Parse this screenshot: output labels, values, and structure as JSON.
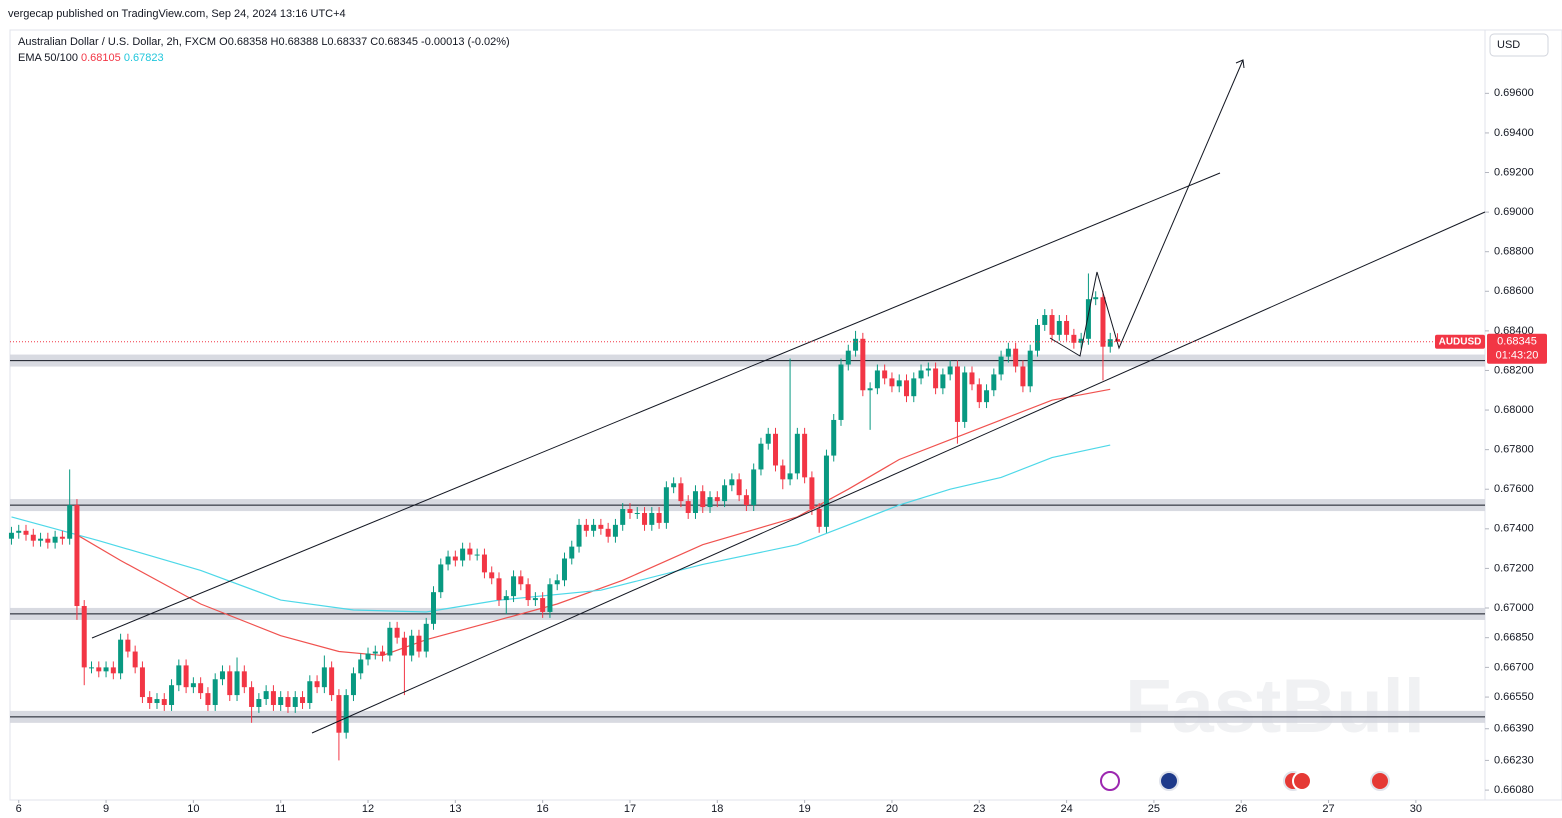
{
  "header": {
    "published": "vergecap published on TradingView.com, Sep 24, 2024 13:16 UTC+4",
    "currency": "USD",
    "watermark": "FastBull"
  },
  "legend": {
    "symbol": "Australian Dollar / U.S. Dollar, 2h, FXCM",
    "open": "O0.68358",
    "high": "H0.68388",
    "low": "L0.68337",
    "close": "C0.68345",
    "change": "-0.00013 (-0.02%)",
    "indicator": "EMA 50/100"
  },
  "price_tag": {
    "symbol": "AUDUSD",
    "countdown": "01:43:20"
  },
  "chart_data": {
    "type": "candlestick",
    "up_color": "#089981",
    "down_color": "#f23645",
    "xlim": [
      -1.2,
      201.5
    ],
    "ylim": [
      0.6603,
      0.6992
    ],
    "xticks": [
      {
        "value": 0,
        "label": "6"
      },
      {
        "value": 12,
        "label": "9"
      },
      {
        "value": 24,
        "label": "10"
      },
      {
        "value": 36,
        "label": "11"
      },
      {
        "value": 48,
        "label": "12"
      },
      {
        "value": 60,
        "label": "13"
      },
      {
        "value": 72,
        "label": "16"
      },
      {
        "value": 84,
        "label": "17"
      },
      {
        "value": 96,
        "label": "18"
      },
      {
        "value": 108,
        "label": "19"
      },
      {
        "value": 120,
        "label": "20"
      },
      {
        "value": 132,
        "label": "23"
      },
      {
        "value": 144,
        "label": "24"
      },
      {
        "value": 156,
        "label": "25"
      },
      {
        "value": 168,
        "label": "26"
      },
      {
        "value": 180,
        "label": "27"
      },
      {
        "value": 192,
        "label": "30"
      }
    ],
    "yticks": [
      {
        "value": 0.6608,
        "label": "0.66080"
      },
      {
        "value": 0.6623,
        "label": "0.66230"
      },
      {
        "value": 0.6639,
        "label": "0.66390"
      },
      {
        "value": 0.6655,
        "label": "0.66550"
      },
      {
        "value": 0.667,
        "label": "0.66700"
      },
      {
        "value": 0.6685,
        "label": "0.66850"
      },
      {
        "value": 0.67,
        "label": "0.67000"
      },
      {
        "value": 0.672,
        "label": "0.67200"
      },
      {
        "value": 0.674,
        "label": "0.67400"
      },
      {
        "value": 0.676,
        "label": "0.67600"
      },
      {
        "value": 0.678,
        "label": "0.67800"
      },
      {
        "value": 0.68,
        "label": "0.68000"
      },
      {
        "value": 0.682,
        "label": "0.68200"
      },
      {
        "value": 0.684,
        "label": "0.68400"
      },
      {
        "value": 0.686,
        "label": "0.68600"
      },
      {
        "value": 0.688,
        "label": "0.68800"
      },
      {
        "value": 0.69,
        "label": "0.69000"
      },
      {
        "value": 0.692,
        "label": "0.69200"
      },
      {
        "value": 0.694,
        "label": "0.69400"
      },
      {
        "value": 0.696,
        "label": "0.69600"
      }
    ],
    "x": [
      -1,
      0,
      1,
      2,
      3,
      4,
      5,
      6,
      7,
      8,
      9,
      10,
      11,
      12,
      13,
      14,
      15,
      16,
      17,
      18,
      19,
      20,
      21,
      22,
      23,
      24,
      25,
      26,
      27,
      28,
      29,
      30,
      31,
      32,
      33,
      34,
      35,
      36,
      37,
      38,
      39,
      40,
      41,
      42,
      43,
      44,
      45,
      46,
      47,
      48,
      49,
      50,
      51,
      52,
      53,
      54,
      55,
      56,
      57,
      58,
      59,
      60,
      61,
      62,
      63,
      64,
      65,
      66,
      67,
      68,
      69,
      70,
      71,
      72,
      73,
      74,
      75,
      76,
      77,
      78,
      79,
      80,
      81,
      82,
      83,
      84,
      85,
      86,
      87,
      88,
      89,
      90,
      91,
      92,
      93,
      94,
      95,
      96,
      97,
      98,
      99,
      100,
      101,
      102,
      103,
      104,
      105,
      106,
      107,
      108,
      109,
      110,
      111,
      112,
      113,
      114,
      115,
      116,
      117,
      118,
      119,
      120,
      121,
      122,
      123,
      124,
      125,
      126,
      127,
      128,
      129,
      130,
      131,
      132,
      133,
      134,
      135,
      136,
      137,
      138,
      139,
      140,
      141,
      142,
      143,
      144,
      145,
      146,
      147,
      148,
      149,
      150,
      151
    ],
    "open": [
      0.6735,
      0.6738,
      0.6739,
      0.6737,
      0.6734,
      0.6735,
      0.6733,
      0.6736,
      0.6735,
      0.6752,
      0.6701,
      0.667,
      0.667,
      0.6668,
      0.667,
      0.6667,
      0.6684,
      0.6678,
      0.667,
      0.6655,
      0.6652,
      0.6654,
      0.6651,
      0.6661,
      0.6671,
      0.666,
      0.6662,
      0.6657,
      0.6651,
      0.6664,
      0.6668,
      0.6656,
      0.6668,
      0.666,
      0.665,
      0.6654,
      0.6658,
      0.6651,
      0.6655,
      0.665,
      0.6655,
      0.6652,
      0.6663,
      0.666,
      0.667,
      0.6656,
      0.6637,
      0.6656,
      0.6667,
      0.6674,
      0.6677,
      0.6678,
      0.6676,
      0.669,
      0.6685,
      0.6676,
      0.6686,
      0.6678,
      0.6692,
      0.6708,
      0.6722,
      0.6726,
      0.6724,
      0.673,
      0.6727,
      0.6727,
      0.6718,
      0.6715,
      0.6704,
      0.6706,
      0.6716,
      0.6712,
      0.6704,
      0.6705,
      0.6698,
      0.6712,
      0.6714,
      0.6725,
      0.6731,
      0.6742,
      0.6739,
      0.6742,
      0.674,
      0.6736,
      0.6742,
      0.675,
      0.6748,
      0.6748,
      0.6742,
      0.6748,
      0.6743,
      0.6761,
      0.6763,
      0.6754,
      0.6748,
      0.6759,
      0.6751,
      0.6756,
      0.6754,
      0.6762,
      0.6765,
      0.6757,
      0.6752,
      0.677,
      0.6783,
      0.6788,
      0.6772,
      0.6765,
      0.6768,
      0.6788,
      0.6766,
      0.675,
      0.6741,
      0.6777,
      0.6795,
      0.6823,
      0.683,
      0.6836,
      0.681,
      0.6811,
      0.682,
      0.6816,
      0.6812,
      0.6815,
      0.6807,
      0.6816,
      0.682,
      0.6821,
      0.6811,
      0.6818,
      0.6822,
      0.6794,
      0.6819,
      0.6813,
      0.6804,
      0.681,
      0.6818,
      0.6827,
      0.6831,
      0.6822,
      0.6812,
      0.683,
      0.6843,
      0.6848,
      0.6838,
      0.6845,
      0.6838,
      0.6834,
      0.6836,
      0.6856,
      0.6857,
      0.6832,
      0.68358
    ],
    "high": [
      0.6741,
      0.6742,
      0.6742,
      0.674,
      0.6738,
      0.6738,
      0.6739,
      0.6739,
      0.677,
      0.6755,
      0.6704,
      0.6673,
      0.6673,
      0.6673,
      0.6673,
      0.6687,
      0.6687,
      0.6681,
      0.6673,
      0.6658,
      0.6657,
      0.6657,
      0.6664,
      0.6674,
      0.6674,
      0.6665,
      0.6665,
      0.666,
      0.6667,
      0.6671,
      0.6671,
      0.6675,
      0.6671,
      0.6663,
      0.6657,
      0.6661,
      0.6661,
      0.6658,
      0.6658,
      0.6658,
      0.6658,
      0.6666,
      0.6666,
      0.6676,
      0.6673,
      0.6659,
      0.6659,
      0.667,
      0.6677,
      0.668,
      0.6681,
      0.6681,
      0.6693,
      0.6693,
      0.6688,
      0.6689,
      0.6689,
      0.6695,
      0.6711,
      0.6725,
      0.6729,
      0.6729,
      0.6733,
      0.6733,
      0.673,
      0.673,
      0.6721,
      0.6718,
      0.6709,
      0.6719,
      0.6719,
      0.6715,
      0.6708,
      0.6708,
      0.6715,
      0.6717,
      0.6728,
      0.6734,
      0.6745,
      0.6745,
      0.6745,
      0.6745,
      0.6743,
      0.6745,
      0.6753,
      0.6753,
      0.6751,
      0.6751,
      0.6751,
      0.6751,
      0.6764,
      0.6766,
      0.6766,
      0.6757,
      0.6762,
      0.6762,
      0.6759,
      0.6759,
      0.6765,
      0.6768,
      0.6768,
      0.676,
      0.6773,
      0.6786,
      0.6791,
      0.6791,
      0.6775,
      0.6826,
      0.6791,
      0.6791,
      0.6769,
      0.6753,
      0.678,
      0.6798,
      0.6826,
      0.6833,
      0.684,
      0.6839,
      0.6814,
      0.6823,
      0.6823,
      0.6819,
      0.6818,
      0.6818,
      0.6819,
      0.6823,
      0.6824,
      0.6824,
      0.6821,
      0.6825,
      0.6825,
      0.6822,
      0.6822,
      0.6816,
      0.6813,
      0.6821,
      0.683,
      0.6834,
      0.6834,
      0.6825,
      0.6833,
      0.6846,
      0.6851,
      0.6851,
      0.6848,
      0.6848,
      0.6841,
      0.6839,
      0.6869,
      0.686,
      0.686,
      0.6839,
      0.68388
    ],
    "low": [
      0.6732,
      0.6735,
      0.6734,
      0.6731,
      0.6731,
      0.673,
      0.673,
      0.6732,
      0.6732,
      0.6694,
      0.6661,
      0.6667,
      0.6665,
      0.6665,
      0.6664,
      0.6664,
      0.6675,
      0.6667,
      0.6652,
      0.6649,
      0.6649,
      0.6648,
      0.6648,
      0.6658,
      0.6657,
      0.6657,
      0.6654,
      0.6648,
      0.6648,
      0.6661,
      0.6653,
      0.6653,
      0.6657,
      0.6642,
      0.6647,
      0.6651,
      0.6648,
      0.6648,
      0.6647,
      0.6647,
      0.6649,
      0.6649,
      0.6657,
      0.6657,
      0.6653,
      0.6623,
      0.6634,
      0.6653,
      0.6664,
      0.6671,
      0.6674,
      0.6673,
      0.6673,
      0.6682,
      0.6656,
      0.6673,
      0.6675,
      0.6675,
      0.6689,
      0.6705,
      0.6719,
      0.6721,
      0.6721,
      0.6724,
      0.6724,
      0.6715,
      0.6712,
      0.6701,
      0.6697,
      0.6703,
      0.6709,
      0.6701,
      0.6701,
      0.6695,
      0.6695,
      0.6709,
      0.6711,
      0.6722,
      0.6728,
      0.6736,
      0.6736,
      0.6737,
      0.6733,
      0.6733,
      0.6739,
      0.6745,
      0.6745,
      0.6739,
      0.6739,
      0.674,
      0.674,
      0.6758,
      0.6751,
      0.6745,
      0.6745,
      0.6748,
      0.6748,
      0.6751,
      0.6751,
      0.6759,
      0.6754,
      0.6749,
      0.6749,
      0.6767,
      0.678,
      0.6769,
      0.676,
      0.6762,
      0.6765,
      0.6763,
      0.6747,
      0.6738,
      0.6738,
      0.6774,
      0.6792,
      0.682,
      0.6827,
      0.6807,
      0.679,
      0.6808,
      0.6813,
      0.6809,
      0.6809,
      0.6804,
      0.6804,
      0.6813,
      0.6817,
      0.6808,
      0.6808,
      0.6815,
      0.6783,
      0.6791,
      0.681,
      0.6801,
      0.6801,
      0.6807,
      0.6815,
      0.6824,
      0.6819,
      0.6809,
      0.6809,
      0.6827,
      0.684,
      0.6835,
      0.6835,
      0.6835,
      0.6831,
      0.6831,
      0.6833,
      0.6853,
      0.6815,
      0.6829,
      0.68337
    ],
    "close": [
      0.6738,
      0.6739,
      0.6737,
      0.6734,
      0.6735,
      0.6733,
      0.6736,
      0.6735,
      0.6752,
      0.6701,
      0.667,
      0.667,
      0.6668,
      0.667,
      0.6667,
      0.6684,
      0.6678,
      0.667,
      0.6655,
      0.6652,
      0.6654,
      0.6651,
      0.6661,
      0.6671,
      0.666,
      0.6662,
      0.6657,
      0.6651,
      0.6664,
      0.6668,
      0.6656,
      0.6668,
      0.666,
      0.665,
      0.6654,
      0.6658,
      0.6651,
      0.6655,
      0.665,
      0.6655,
      0.6652,
      0.6663,
      0.666,
      0.667,
      0.6656,
      0.6637,
      0.6656,
      0.6667,
      0.6674,
      0.6677,
      0.6678,
      0.6676,
      0.669,
      0.6685,
      0.6676,
      0.6686,
      0.6678,
      0.6692,
      0.6708,
      0.6722,
      0.6726,
      0.6724,
      0.673,
      0.6727,
      0.6727,
      0.6718,
      0.6715,
      0.6704,
      0.6706,
      0.6716,
      0.6712,
      0.6704,
      0.6705,
      0.6698,
      0.6712,
      0.6714,
      0.6725,
      0.6731,
      0.6742,
      0.6739,
      0.6742,
      0.674,
      0.6736,
      0.6742,
      0.675,
      0.6748,
      0.6748,
      0.6742,
      0.6748,
      0.6743,
      0.6761,
      0.6763,
      0.6754,
      0.6748,
      0.6759,
      0.6751,
      0.6756,
      0.6754,
      0.6762,
      0.6765,
      0.6757,
      0.6752,
      0.677,
      0.6783,
      0.6788,
      0.6772,
      0.6765,
      0.6768,
      0.6788,
      0.6766,
      0.675,
      0.6741,
      0.6777,
      0.6795,
      0.6823,
      0.683,
      0.6836,
      0.681,
      0.6811,
      0.682,
      0.6816,
      0.6812,
      0.6815,
      0.6807,
      0.6816,
      0.682,
      0.6821,
      0.6811,
      0.6818,
      0.6822,
      0.6794,
      0.6819,
      0.6813,
      0.6804,
      0.681,
      0.6818,
      0.6827,
      0.6831,
      0.6822,
      0.6812,
      0.683,
      0.6843,
      0.6848,
      0.6838,
      0.6845,
      0.6838,
      0.6834,
      0.6836,
      0.6856,
      0.6857,
      0.6832,
      0.68358,
      0.68345
    ],
    "lines": [
      {
        "color": "#f0524f",
        "x": [
          8,
          14,
          25,
          36,
          44,
          50,
          56,
          66,
          74,
          83,
          94,
          107,
          114,
          121,
          128,
          135,
          142,
          150
        ],
        "values": [
          0.6737,
          0.6724,
          0.6702,
          0.6686,
          0.6678,
          0.6676,
          0.6684,
          0.6694,
          0.6702,
          0.6714,
          0.6732,
          0.6746,
          0.676,
          0.6775,
          0.6785,
          0.6795,
          0.6805,
          0.68105
        ]
      },
      {
        "color": "#4dd8e8",
        "x": [
          -1,
          11,
          25,
          36,
          46,
          56,
          66,
          80,
          94,
          107,
          114,
          121,
          128,
          135,
          142,
          150
        ],
        "values": [
          0.6746,
          0.6734,
          0.6719,
          0.6704,
          0.6699,
          0.6698,
          0.6704,
          0.6709,
          0.6722,
          0.6732,
          0.6742,
          0.6752,
          0.676,
          0.6766,
          0.6776,
          0.67823
        ]
      }
    ],
    "levels": [
      0.6825,
      0.6752,
      0.6697,
      0.6645
    ]
  }
}
